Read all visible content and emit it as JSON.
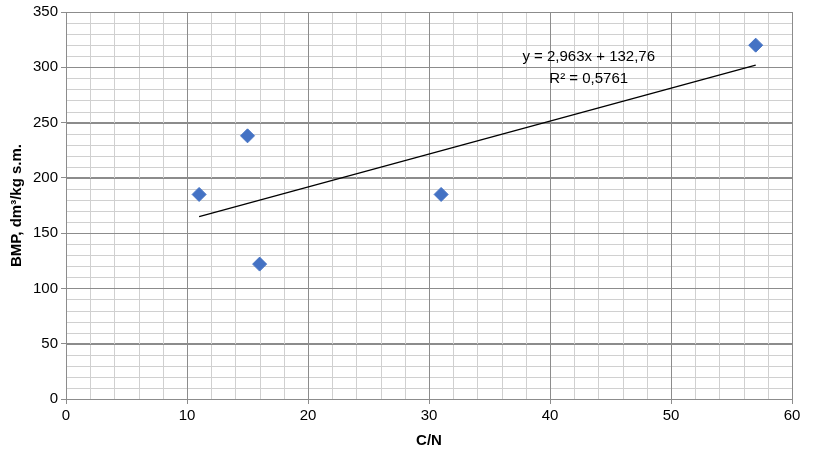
{
  "chart_data": {
    "type": "scatter",
    "x_label": "C/N",
    "y_label": "BMP, dm³/kg s.m.",
    "annotations": [
      "y = 2,963x + 132,76",
      "R² = 0,5761"
    ],
    "series": [
      {
        "type": "scatter",
        "color": "#4472c4",
        "marker": "diamond",
        "x": [
          11,
          15,
          16,
          31,
          57
        ],
        "values": [
          185,
          238,
          122,
          185,
          320
        ]
      },
      {
        "type": "line",
        "color": "#000000",
        "line_style": "solid",
        "x": [
          11,
          57
        ],
        "values": [
          165,
          302
        ]
      }
    ],
    "xlim": [
      0,
      60
    ],
    "xticks": [
      0,
      10,
      20,
      30,
      40,
      50,
      60
    ],
    "ylim": [
      0,
      350
    ],
    "yticks": [
      0,
      50,
      100,
      150,
      200,
      250,
      300,
      350
    ],
    "grid": true
  }
}
